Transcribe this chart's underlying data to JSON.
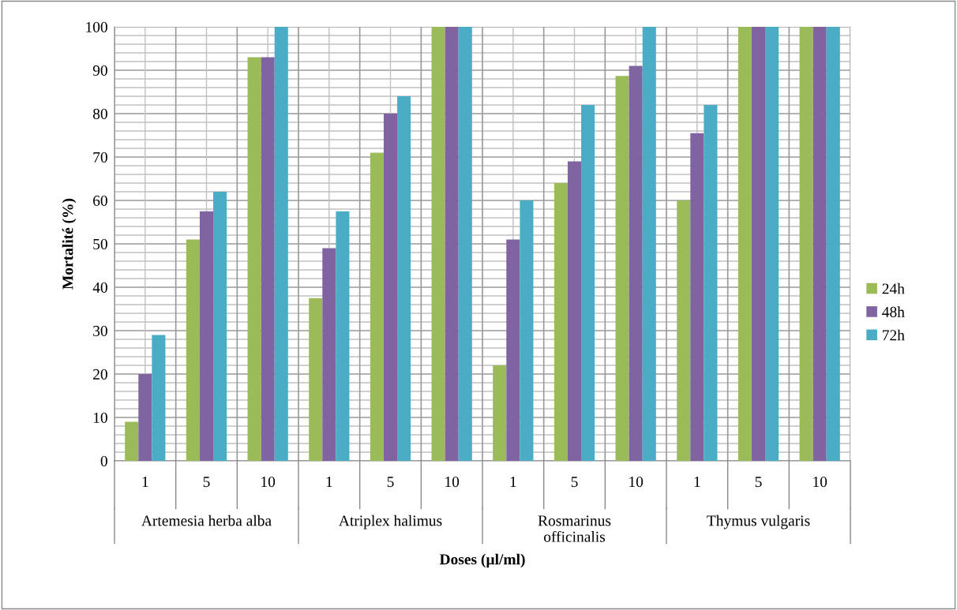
{
  "chart_data": {
    "type": "bar",
    "xlabel": "Doses (µl/ml)",
    "ylabel": "Mortalité (%)",
    "categories": [
      "1",
      "5",
      "10",
      "1",
      "5",
      "10",
      "1",
      "5",
      "10",
      "1",
      "5",
      "10"
    ],
    "annotations": [
      "Artemesia herba alba",
      "Atriplex halimus",
      "Rosmarinus\nofficinalis",
      "Thymus vulgaris"
    ],
    "series": [
      {
        "name": "24h",
        "color": "#9bbb59",
        "values": [
          9,
          51,
          93,
          37.5,
          71,
          100,
          22,
          64,
          88.7,
          60,
          100,
          100
        ]
      },
      {
        "name": "48h",
        "color": "#8064a2",
        "values": [
          20,
          57.5,
          93,
          49,
          80,
          100,
          51,
          69,
          91,
          75.5,
          100,
          100
        ]
      },
      {
        "name": "72h",
        "color": "#4bacc6",
        "values": [
          29,
          62,
          100,
          57.5,
          84,
          100,
          60,
          82,
          100,
          82,
          100,
          100
        ]
      }
    ],
    "ylim": [
      0,
      100
    ],
    "yticks": [
      0,
      {
        "value": 2,
        "label": null
      },
      {
        "value": 4,
        "label": null
      },
      {
        "value": 6,
        "label": null
      },
      {
        "value": 8,
        "label": null
      },
      10,
      {
        "value": 12,
        "label": null
      },
      {
        "value": 14,
        "label": null
      },
      {
        "value": 16,
        "label": null
      },
      {
        "value": 18,
        "label": null
      },
      20,
      {
        "value": 22,
        "label": null
      },
      {
        "value": 24,
        "label": null
      },
      {
        "value": 26,
        "label": null
      },
      {
        "value": 28,
        "label": null
      },
      30,
      {
        "value": 32,
        "label": null
      },
      {
        "value": 34,
        "label": null
      },
      {
        "value": 36,
        "label": null
      },
      {
        "value": 38,
        "label": null
      },
      40,
      {
        "value": 42,
        "label": null
      },
      {
        "value": 44,
        "label": null
      },
      {
        "value": 46,
        "label": null
      },
      {
        "value": 48,
        "label": null
      },
      50,
      {
        "value": 52,
        "label": null
      },
      {
        "value": 54,
        "label": null
      },
      {
        "value": 56,
        "label": null
      },
      {
        "value": 58,
        "label": null
      },
      60,
      {
        "value": 62,
        "label": null
      },
      {
        "value": 64,
        "label": null
      },
      {
        "value": 66,
        "label": null
      },
      {
        "value": 68,
        "label": null
      },
      70,
      {
        "value": 72,
        "label": null
      },
      {
        "value": 74,
        "label": null
      },
      {
        "value": 76,
        "label": null
      },
      {
        "value": 78,
        "label": null
      },
      80,
      {
        "value": 82,
        "label": null
      },
      {
        "value": 84,
        "label": null
      },
      {
        "value": 86,
        "label": null
      },
      {
        "value": 88,
        "label": null
      },
      90,
      {
        "value": 92,
        "label": null
      },
      {
        "value": 94,
        "label": null
      },
      {
        "value": 96,
        "label": null
      },
      {
        "value": 98,
        "label": null
      },
      100
    ],
    "grid": true,
    "legend": "right"
  }
}
